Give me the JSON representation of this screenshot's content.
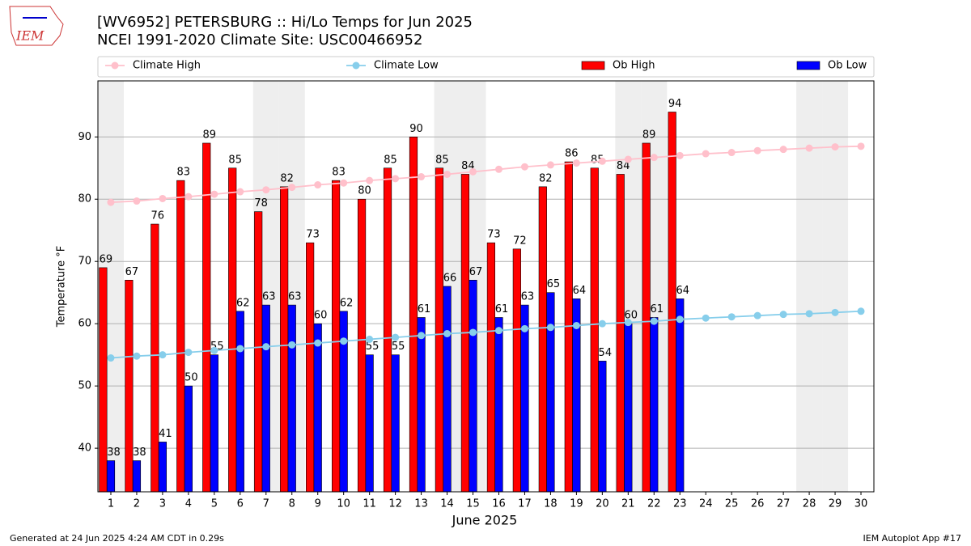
{
  "logo": {
    "text": "IEM"
  },
  "chart_data": {
    "type": "bar",
    "title": "[WV6952] PETERSBURG :: Hi/Lo Temps for Jun 2025",
    "subtitle": "NCEI 1991-2020 Climate Site: USC00466952",
    "xlabel": "June 2025",
    "ylabel": "Temperature °F",
    "x": [
      1,
      2,
      3,
      4,
      5,
      6,
      7,
      8,
      9,
      10,
      11,
      12,
      13,
      14,
      15,
      16,
      17,
      18,
      19,
      20,
      21,
      22,
      23,
      24,
      25,
      26,
      27,
      28,
      29,
      30
    ],
    "xlim": [
      0.5,
      30.5
    ],
    "xticks": [
      1,
      2,
      3,
      4,
      5,
      6,
      7,
      8,
      9,
      10,
      11,
      12,
      13,
      14,
      15,
      16,
      17,
      18,
      19,
      20,
      21,
      22,
      23,
      24,
      25,
      26,
      27,
      28,
      29,
      30
    ],
    "ylim": [
      33,
      99
    ],
    "yticks": [
      40,
      50,
      60,
      70,
      80,
      90
    ],
    "grid": true,
    "shaded_days": [
      1,
      7,
      8,
      14,
      15,
      21,
      22,
      28,
      29
    ],
    "legend": "top",
    "series": [
      {
        "name": "Climate High",
        "type": "line",
        "color": "#ffc0cb",
        "values": [
          79.5,
          79.7,
          80.1,
          80.4,
          80.8,
          81.2,
          81.5,
          81.9,
          82.3,
          82.6,
          83.0,
          83.3,
          83.6,
          84.0,
          84.4,
          84.8,
          85.2,
          85.5,
          85.8,
          86.1,
          86.4,
          86.7,
          87.0,
          87.3,
          87.5,
          87.8,
          88.0,
          88.2,
          88.4,
          88.5
        ]
      },
      {
        "name": "Climate Low",
        "type": "line",
        "color": "#87ceeb",
        "values": [
          54.5,
          54.8,
          55.0,
          55.4,
          55.7,
          56.0,
          56.3,
          56.6,
          56.9,
          57.2,
          57.5,
          57.8,
          58.1,
          58.4,
          58.6,
          58.9,
          59.2,
          59.4,
          59.7,
          60.0,
          60.2,
          60.4,
          60.7,
          60.9,
          61.1,
          61.3,
          61.5,
          61.6,
          61.8,
          62.0
        ]
      },
      {
        "name": "Ob High",
        "type": "bar",
        "color": "#ff0000",
        "values": [
          69,
          67,
          76,
          83,
          89,
          85,
          78,
          82,
          73,
          83,
          80,
          85,
          90,
          85,
          84,
          73,
          72,
          82,
          86,
          85,
          84,
          89,
          94,
          null,
          null,
          null,
          null,
          null,
          null,
          null
        ]
      },
      {
        "name": "Ob Low",
        "type": "bar",
        "color": "#0000ff",
        "values": [
          38,
          38,
          41,
          50,
          55,
          62,
          63,
          63,
          60,
          62,
          55,
          55,
          61,
          66,
          67,
          61,
          63,
          65,
          64,
          54,
          60,
          61,
          64,
          null,
          null,
          null,
          null,
          null,
          null,
          null
        ]
      }
    ]
  },
  "footer": {
    "left": "Generated at 24 Jun 2025 4:24 AM CDT in 0.29s",
    "right": "IEM Autoplot App #17"
  }
}
